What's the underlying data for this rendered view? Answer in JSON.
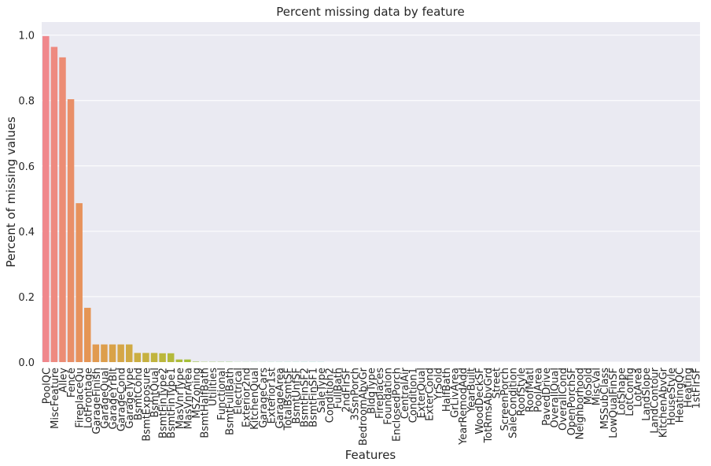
{
  "chart_data": {
    "type": "bar",
    "title": "Percent missing data by feature",
    "xlabel": "Features",
    "ylabel": "Percent of missing values",
    "ylim": [
      0,
      1.04
    ],
    "yticks": [
      "0.0",
      "0.2",
      "0.4",
      "0.6",
      "0.8",
      "1.0"
    ],
    "grid": true,
    "categories": [
      "PoolQC",
      "MiscFeature",
      "Alley",
      "Fence",
      "FireplaceQu",
      "LotFrontage",
      "GarageFinish",
      "GarageQual",
      "GarageYrBlt",
      "GarageCond",
      "GarageType",
      "BsmtCond",
      "BsmtExposure",
      "BsmtQual",
      "BsmtFinType2",
      "BsmtFinType1",
      "MasVnrType",
      "MasVnrArea",
      "MSZoning",
      "BsmtHalfBath",
      "Utilities",
      "Functional",
      "BsmtFullBath",
      "Electrical",
      "Exterior2nd",
      "KitchenQual",
      "GarageCars",
      "Exterior1st",
      "GarageArea",
      "TotalBsmtSF",
      "BsmtUnfSF",
      "BsmtFinSF2",
      "BsmtFinSF1",
      "SaleType",
      "Condition2",
      "FullBath",
      "2ndFlrSF",
      "3SsnPorch",
      "BedroomAbvGr",
      "BldgType",
      "Fireplaces",
      "Foundation",
      "EnclosedPorch",
      "CentralAir",
      "Condition1",
      "ExterQual",
      "ExterCond",
      "YrSold",
      "HalfBath",
      "GrLivArea",
      "YearRemodAdd",
      "YearBuilt",
      "WoodDeckSF",
      "TotRmsAbvGrd",
      "Street",
      "ScreenPorch",
      "SaleCondition",
      "RoofStyle",
      "RoofMatl",
      "PoolArea",
      "PavedDrive",
      "OverallQual",
      "OverallCond",
      "OpenPorchSF",
      "Neighborhood",
      "MoSold",
      "MiscVal",
      "MSSubClass",
      "LowQualFinSF",
      "LotShape",
      "LotConfig",
      "LotArea",
      "LandSlope",
      "LandContour",
      "KitchenAbvGr",
      "HouseStyle",
      "HeatingQC",
      "Heating",
      "1stFlrSF"
    ],
    "values": [
      0.997,
      0.964,
      0.932,
      0.804,
      0.486,
      0.166,
      0.054,
      0.054,
      0.054,
      0.054,
      0.054,
      0.028,
      0.028,
      0.028,
      0.027,
      0.027,
      0.008,
      0.008,
      0.0014,
      0.0007,
      0.0007,
      0.0007,
      0.0007,
      0.0003,
      0.0003,
      0.0003,
      0.0003,
      0.0003,
      0.0003,
      0.0003,
      0.0003,
      0.0003,
      0.0003,
      0.0003,
      0,
      0,
      0,
      0,
      0,
      0,
      0,
      0,
      0,
      0,
      0,
      0,
      0,
      0,
      0,
      0,
      0,
      0,
      0,
      0,
      0,
      0,
      0,
      0,
      0,
      0,
      0,
      0,
      0,
      0,
      0,
      0,
      0,
      0,
      0,
      0,
      0,
      0,
      0,
      0,
      0,
      0,
      0,
      0,
      0
    ],
    "colors": [
      "#f0878c",
      "#ee8a80",
      "#ec8c74",
      "#e98f68",
      "#e7925c",
      "#e59554",
      "#e19a50",
      "#dd9e4c",
      "#d9a248",
      "#d5a647",
      "#d0aa44",
      "#cbae42",
      "#c6b140",
      "#c1b43e",
      "#bbb73c",
      "#b4ba3b",
      "#adbc3a",
      "#a5bf39",
      "#9dc23a",
      "#95c43c",
      "#8cc63f",
      "#83c843",
      "#79ca48",
      "#6fcb4e",
      "#66cc55",
      "#5ccd5c",
      "#54cd64",
      "#4ccd6b",
      "#45cd73",
      "#3fcd7a",
      "#3acc81",
      "#37cb88",
      "#35ca8e",
      "#34c994",
      "#34c89a",
      "#35c7a0",
      "#36c5a5",
      "#38c4aa",
      "#3ac2af",
      "#3cc1b4",
      "#3ebfb9",
      "#40bebd",
      "#42bcc2",
      "#44bac6",
      "#46b8ca",
      "#48b6ce",
      "#4ab3d2",
      "#4db1d6",
      "#51aeda",
      "#56abde",
      "#5ca7e2",
      "#63a3e5",
      "#6b9fe8",
      "#749aeb",
      "#7e95ed",
      "#888fef",
      "#928af0",
      "#9c84f0",
      "#a67ff0",
      "#b07aef",
      "#b976ee",
      "#c272ec",
      "#ca6fea",
      "#d26ce7",
      "#d96be3",
      "#df6adf",
      "#e46ad9",
      "#e86bd3",
      "#eb6dcc",
      "#ed70c5",
      "#ef73bd",
      "#f076b6",
      "#f179ae",
      "#f27ca7",
      "#f27fa0",
      "#f28299",
      "#f28493",
      "#f1868e",
      "#f0878c"
    ]
  }
}
